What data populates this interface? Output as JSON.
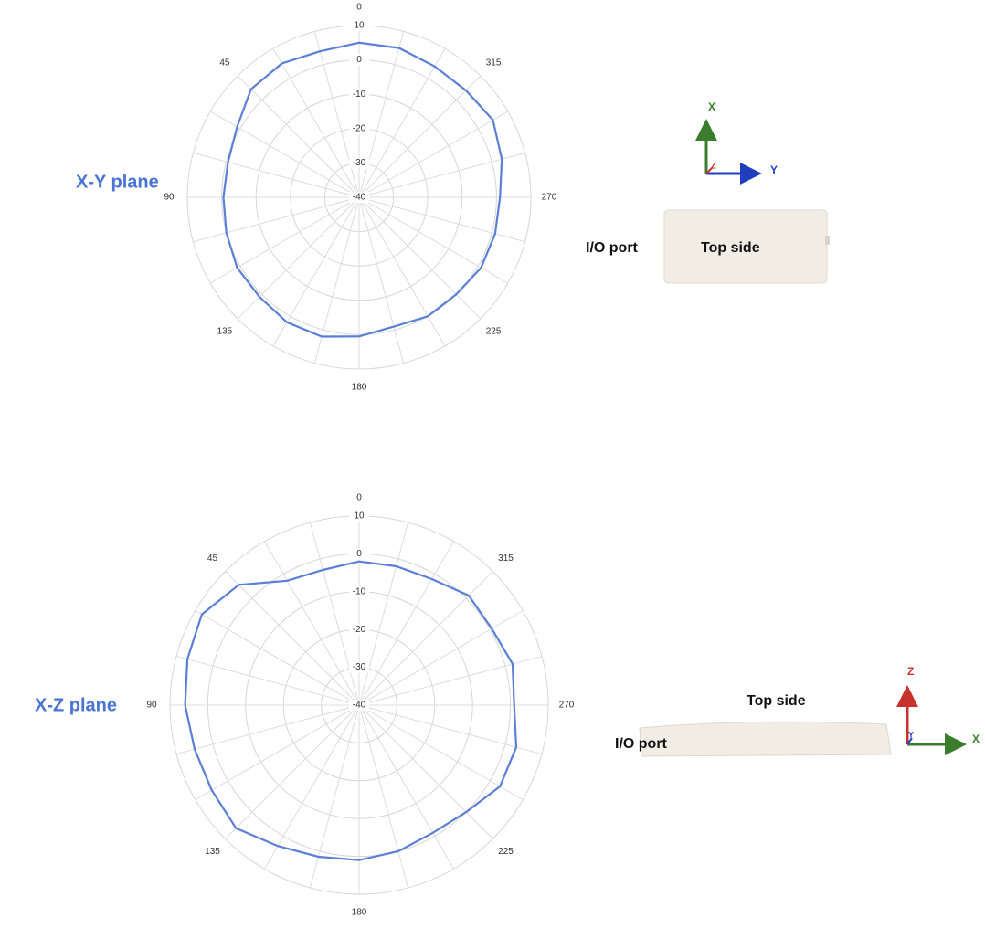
{
  "chart_data": [
    {
      "type": "polar",
      "title": "X-Y plane",
      "theta": [
        0,
        15,
        30,
        45,
        60,
        75,
        90,
        105,
        120,
        135,
        150,
        165,
        180,
        195,
        210,
        225,
        240,
        255,
        270,
        285,
        300,
        315,
        330,
        345
      ],
      "series": [
        {
          "color": "#5b7fd6",
          "values": [
            5,
            4,
            5,
            4.5,
            1,
            -0.5,
            -0.5,
            0,
            1,
            1,
            2,
            2,
            0.5,
            -1,
            0,
            0,
            1,
            1,
            1,
            3,
            5,
            4,
            4,
            5
          ]
        }
      ],
      "rlim": [
        -40,
        10
      ],
      "rticks": [
        -40,
        -30,
        -20,
        -10,
        0,
        10
      ],
      "thetaticks": [
        0,
        45,
        90,
        135,
        180,
        225,
        270,
        315
      ],
      "grid": true,
      "annotations": {
        "port": "I/O port",
        "side": "Top side"
      },
      "device_axes": {
        "up": "X",
        "right": "Y",
        "out": "Z"
      }
    },
    {
      "type": "polar",
      "title": "X-Z plane",
      "theta": [
        0,
        15,
        30,
        45,
        60,
        75,
        90,
        105,
        120,
        135,
        150,
        165,
        180,
        195,
        210,
        225,
        240,
        255,
        270,
        285,
        300,
        315,
        330,
        345
      ],
      "series": [
        {
          "color": "#5b7fd6",
          "values": [
            -2,
            -3,
            -2,
            5,
            8,
            7,
            6,
            5,
            5,
            6,
            3,
            1.5,
            1,
            0,
            -1,
            0,
            3,
            3,
            1,
            2,
            0.5,
            1,
            -1.5,
            -2
          ]
        }
      ],
      "rlim": [
        -40,
        10
      ],
      "rticks": [
        -40,
        -30,
        -20,
        -10,
        0,
        10
      ],
      "thetaticks": [
        0,
        45,
        90,
        135,
        180,
        225,
        270,
        315
      ],
      "grid": true,
      "annotations": {
        "port": "I/O port",
        "side": "Top side"
      },
      "device_axes": {
        "up": "Z",
        "right": "X",
        "out": "Y"
      }
    }
  ]
}
